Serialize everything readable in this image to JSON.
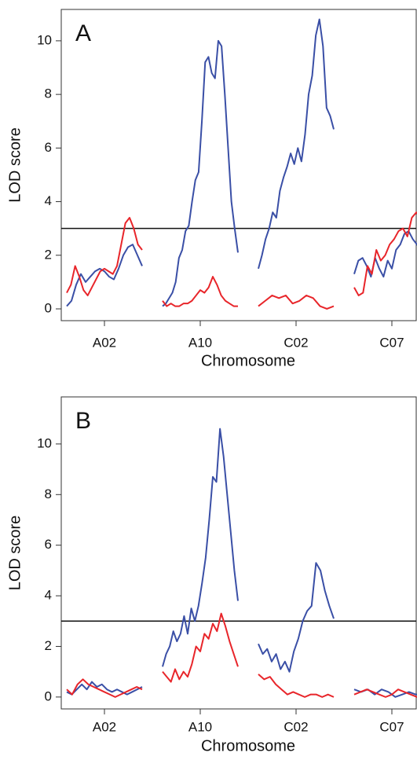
{
  "chart_data": [
    {
      "type": "line",
      "title": "A",
      "ylabel": "LOD score",
      "xlabel": "Chromosome",
      "categories": [
        "A02",
        "A10",
        "C02",
        "C07"
      ],
      "ylim": [
        -0.44,
        11.17
      ],
      "yticks": [
        0,
        2,
        4,
        6,
        8,
        10
      ],
      "threshold": 3,
      "series": [
        {
          "color": "#3a4fa6",
          "values": [
            [
              0.1,
              0.3,
              0.9,
              1.3,
              1.0,
              1.2,
              1.4,
              1.5,
              1.4,
              1.2,
              1.1,
              1.5,
              2.0,
              2.3,
              2.4,
              2.0,
              1.6
            ],
            [
              0.1,
              0.2,
              0.4,
              0.6,
              1.0,
              1.9,
              2.2,
              2.9,
              3.1,
              4.0,
              4.8,
              5.1,
              7.0,
              9.2,
              9.4,
              8.8,
              8.6,
              10.0,
              9.8,
              8.0,
              6.0,
              4.0,
              3.0,
              2.1
            ],
            [
              1.5,
              2.0,
              2.6,
              3.0,
              3.6,
              3.4,
              4.4,
              4.9,
              5.3,
              5.8,
              5.4,
              6.0,
              5.5,
              6.5,
              8.0,
              8.7,
              10.2,
              10.8,
              9.8,
              7.5,
              7.2,
              6.7
            ],
            [
              1.3,
              1.8,
              1.9,
              1.6,
              1.2,
              1.9,
              1.5,
              1.2,
              1.8,
              1.5,
              2.2,
              2.4,
              2.8,
              2.9,
              2.6,
              2.4,
              2.2,
              1.9,
              1.6
            ]
          ]
        },
        {
          "color": "#e8252a",
          "values": [
            [
              0.6,
              0.9,
              1.6,
              1.2,
              0.7,
              0.5,
              0.8,
              1.1,
              1.4,
              1.5,
              1.4,
              1.3,
              1.6,
              2.4,
              3.2,
              3.4,
              3.0,
              2.4,
              2.2
            ],
            [
              0.3,
              0.1,
              0.2,
              0.1,
              0.1,
              0.2,
              0.2,
              0.3,
              0.5,
              0.7,
              0.6,
              0.8,
              1.2,
              0.9,
              0.5,
              0.3,
              0.2,
              0.1,
              0.1
            ],
            [
              0.1,
              0.3,
              0.5,
              0.4,
              0.5,
              0.2,
              0.3,
              0.5,
              0.4,
              0.1,
              0.0,
              0.1
            ],
            [
              0.8,
              0.5,
              0.6,
              1.6,
              1.3,
              2.2,
              1.8,
              2.0,
              2.4,
              2.6,
              2.9,
              3.0,
              2.7,
              3.4,
              3.6,
              3.4,
              2.9,
              2.3
            ]
          ]
        }
      ]
    },
    {
      "type": "line",
      "title": "B",
      "ylabel": "LOD score",
      "xlabel": "Chromosome",
      "categories": [
        "A02",
        "A10",
        "C02",
        "C07"
      ],
      "ylim": [
        -0.47,
        11.86
      ],
      "yticks": [
        0,
        2,
        4,
        6,
        8,
        10
      ],
      "threshold": 3,
      "series": [
        {
          "color": "#3a4fa6",
          "values": [
            [
              0.2,
              0.1,
              0.3,
              0.5,
              0.3,
              0.6,
              0.4,
              0.5,
              0.3,
              0.2,
              0.3,
              0.2,
              0.1,
              0.2,
              0.3,
              0.4
            ],
            [
              1.2,
              1.7,
              2.0,
              2.6,
              2.2,
              2.5,
              3.2,
              2.5,
              3.5,
              3.0,
              3.6,
              4.5,
              5.5,
              7.0,
              8.7,
              8.5,
              10.6,
              9.5,
              8.0,
              6.5,
              5.0,
              3.8
            ],
            [
              2.1,
              1.7,
              1.9,
              1.4,
              1.7,
              1.1,
              1.4,
              1.0,
              1.8,
              2.3,
              3.0,
              3.4,
              3.6,
              5.3,
              5.0,
              4.2,
              3.6,
              3.1
            ],
            [
              0.3,
              0.2,
              0.3,
              0.1,
              0.3,
              0.2,
              0.0,
              0.1,
              0.2,
              0.1,
              0.1,
              0.1
            ]
          ]
        },
        {
          "color": "#e8252a",
          "values": [
            [
              0.3,
              0.1,
              0.5,
              0.7,
              0.5,
              0.4,
              0.3,
              0.2,
              0.1,
              0.0,
              0.1,
              0.2,
              0.3,
              0.4,
              0.3
            ],
            [
              1.0,
              0.8,
              0.6,
              1.1,
              0.7,
              1.0,
              0.8,
              1.3,
              2.0,
              1.8,
              2.5,
              2.3,
              2.9,
              2.6,
              3.3,
              2.8,
              2.2,
              1.7,
              1.2
            ],
            [
              0.9,
              0.7,
              0.8,
              0.5,
              0.3,
              0.1,
              0.2,
              0.1,
              0.0,
              0.1,
              0.1,
              0.0,
              0.1,
              0.0
            ],
            [
              0.1,
              0.2,
              0.3,
              0.2,
              0.1,
              0.0,
              0.1,
              0.3,
              0.2,
              0.1,
              0.0,
              0.1,
              0.1
            ]
          ]
        }
      ]
    }
  ]
}
